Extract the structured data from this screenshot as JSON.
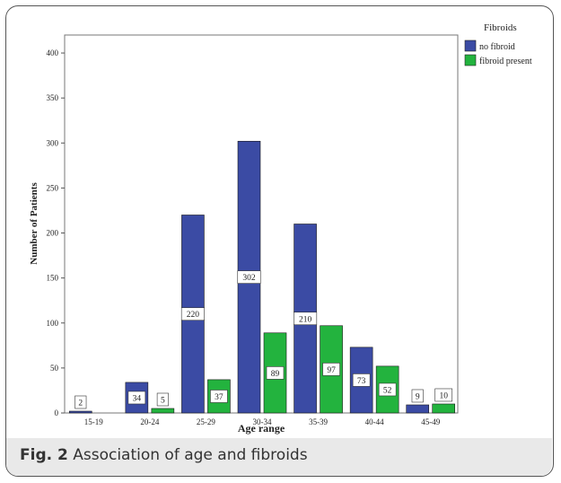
{
  "caption": {
    "label": "Fig. 2",
    "text": "Association of age and fibroids"
  },
  "chart_data": {
    "type": "bar",
    "categories": [
      "15-19",
      "20-24",
      "25-29",
      "30-34",
      "35-39",
      "40-44",
      "45-49"
    ],
    "series": [
      {
        "name": "no fibroid",
        "values": [
          2,
          34,
          220,
          302,
          210,
          73,
          9
        ],
        "color": "#3b4ba4"
      },
      {
        "name": "fibroid present",
        "values": [
          0,
          5,
          37,
          89,
          97,
          52,
          10
        ],
        "color": "#23b33e"
      }
    ],
    "data_labels": [
      [
        "2",
        "34",
        "220",
        "302",
        "210",
        "73",
        "9"
      ],
      [
        null,
        "5",
        "37",
        "89",
        "97",
        "52",
        "10"
      ]
    ],
    "title": "",
    "xlabel": "Age range",
    "ylabel": "Number of Patients",
    "ylim": [
      0,
      420
    ],
    "yticks": [
      0,
      50,
      100,
      150,
      200,
      250,
      300,
      350,
      400
    ],
    "legend": {
      "title": "Fibroids",
      "placement": "top-right"
    },
    "grid": false
  }
}
